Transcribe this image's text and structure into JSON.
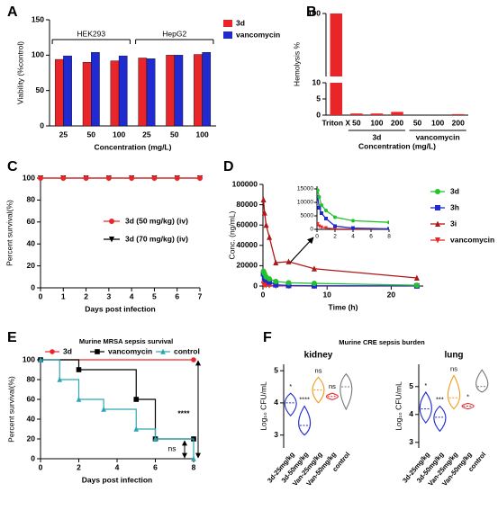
{
  "chart_data": [
    {
      "type": "bar",
      "panel_label": "A",
      "y_label": "Viability (%control)",
      "x_label": "Concentration (mg/L)",
      "categories": [
        "25",
        "50",
        "100",
        "25",
        "50",
        "100"
      ],
      "category_groups": [
        "HEK293",
        "HEK293",
        "HEK293",
        "HepG2",
        "HepG2",
        "HepG2"
      ],
      "series": [
        {
          "name": "3d",
          "color": "#e8262a",
          "values": [
            94,
            90,
            92,
            96,
            100,
            101
          ]
        },
        {
          "name": "vancomycin",
          "color": "#1f2bd1",
          "values": [
            99,
            104,
            99,
            95,
            100,
            104
          ]
        }
      ],
      "ylim": [
        0,
        150
      ],
      "yticks": [
        0,
        50,
        100,
        150
      ]
    },
    {
      "type": "bar",
      "panel_label": "B",
      "y_label": "Hemolysis %",
      "x_label": "Concentration (mg/L)",
      "categories": [
        "Triton X",
        "50",
        "100",
        "200",
        "50",
        "100",
        "200"
      ],
      "category_groups": [
        null,
        "3d",
        "3d",
        "3d",
        "vancomycin",
        "vancomycin",
        "vancomycin"
      ],
      "series": [
        {
          "color": "#e8262a",
          "values": [
            100,
            0.5,
            0.5,
            1,
            0,
            0,
            0.3
          ]
        }
      ],
      "ylim": [
        0,
        100
      ],
      "y_break": [
        10,
        15
      ],
      "yticks": [
        0,
        5,
        10,
        100
      ]
    },
    {
      "type": "line",
      "panel_label": "C",
      "y_label": "Percent survival(%)",
      "x_label": "Days post infection",
      "x": [
        0,
        1,
        2,
        3,
        4,
        5,
        6,
        7
      ],
      "series": [
        {
          "name": "3d (50 mg/kg) (iv)",
          "color": "#e8262a",
          "marker": "circle",
          "values": [
            100,
            100,
            100,
            100,
            100,
            100,
            100,
            100
          ]
        },
        {
          "name": "3d (70 mg/kg) (iv)",
          "color": "#000000",
          "marker": "triangle-down",
          "values": [
            100,
            100,
            100,
            100,
            100,
            100,
            100,
            100
          ]
        }
      ],
      "xlim": [
        0,
        7
      ],
      "xticks": [
        0,
        1,
        2,
        3,
        4,
        5,
        6,
        7
      ],
      "ylim": [
        0,
        100
      ],
      "yticks": [
        0,
        20,
        40,
        60,
        80,
        100
      ]
    },
    {
      "type": "line",
      "panel_label": "D",
      "y_label": "Conc. (ng/mL)",
      "x_label": "Time (h)",
      "x": [
        0.083,
        0.25,
        0.5,
        1,
        2,
        4,
        8,
        24
      ],
      "series": [
        {
          "name": "3d",
          "color": "#22c32a",
          "marker": "circle",
          "values": [
            14500,
            12000,
            9000,
            7000,
            4500,
            3200,
            2600,
            800
          ]
        },
        {
          "name": "3h",
          "color": "#1f2bd1",
          "marker": "square",
          "values": [
            12000,
            8000,
            6000,
            4000,
            1200,
            500,
            200,
            100
          ]
        },
        {
          "name": "3i",
          "color": "#b01717",
          "marker": "triangle",
          "values": [
            85000,
            72000,
            60000,
            48000,
            23000,
            24000,
            17000,
            8000
          ]
        },
        {
          "name": "vancomycin",
          "color": "#e8262a",
          "marker": "triangle-down",
          "values": [
            2000,
            1200,
            800,
            500,
            200,
            100,
            50,
            0
          ]
        }
      ],
      "xlim": [
        0,
        25
      ],
      "xticks": [
        0,
        10,
        20
      ],
      "ylim": [
        0,
        100000
      ],
      "yticks": [
        0,
        20000,
        40000,
        60000,
        80000,
        100000
      ],
      "inset": {
        "xlim": [
          0,
          8
        ],
        "xticks": [
          0,
          2,
          4,
          6,
          8
        ],
        "ylim": [
          0,
          16000
        ],
        "yticks": [
          0,
          5000,
          10000,
          15000
        ]
      }
    },
    {
      "type": "step",
      "panel_label": "E",
      "title": "Murine MRSA sepsis survival",
      "y_label": "Percent survival(%)",
      "x_label": "Days post infection",
      "series": [
        {
          "name": "3d",
          "color": "#e8262a",
          "marker": "circle",
          "x": [
            0,
            8
          ],
          "values": [
            100,
            100
          ]
        },
        {
          "name": "vancomycin",
          "color": "#000000",
          "marker": "square",
          "x": [
            0,
            2,
            5,
            6,
            8
          ],
          "values": [
            100,
            90,
            60,
            20,
            20
          ]
        },
        {
          "name": "control",
          "color": "#2aa6b5",
          "marker": "triangle",
          "x": [
            0,
            1,
            2,
            3.3,
            5,
            6,
            8
          ],
          "values": [
            100,
            80,
            60,
            50,
            30,
            20,
            0
          ]
        }
      ],
      "annotations": [
        "ns",
        "****"
      ],
      "xlim": [
        0,
        8
      ],
      "xticks": [
        0,
        2,
        4,
        6,
        8
      ],
      "ylim": [
        0,
        100
      ],
      "yticks": [
        0,
        20,
        40,
        60,
        80,
        100
      ]
    },
    {
      "type": "violin",
      "panel_label": "F",
      "title": "Murine CRE sepsis burden",
      "y_label": "Log₁₀ CFU/mL",
      "categories": [
        "3d-25mg/kg",
        "3d-50mg/kg",
        "Van-25mg/kg",
        "Van-50mg/kg",
        "control"
      ],
      "colors": [
        "#1f2bd1",
        "#1f2bd1",
        "#f39b1c",
        "#e8262a",
        "#777777"
      ],
      "panels": [
        {
          "title": "kidney",
          "min": [
            3.6,
            3.0,
            4.0,
            4.1,
            3.8
          ],
          "median": [
            4.0,
            3.3,
            4.4,
            4.2,
            4.5
          ],
          "max": [
            4.3,
            3.9,
            4.8,
            4.3,
            4.9
          ],
          "significance": [
            "*",
            "****",
            "ns",
            "ns",
            null
          ],
          "ylim": [
            2.6,
            5.2
          ],
          "yticks": [
            3,
            4,
            5
          ]
        },
        {
          "title": "lung",
          "min": [
            3.7,
            3.4,
            4.2,
            4.2,
            4.8
          ],
          "median": [
            4.2,
            3.9,
            4.6,
            4.3,
            5.0
          ],
          "max": [
            4.8,
            4.3,
            5.4,
            4.4,
            5.6
          ],
          "significance": [
            "*",
            "***",
            "ns",
            "*",
            null
          ],
          "ylim": [
            2.8,
            5.8
          ],
          "yticks": [
            3,
            4,
            5
          ]
        }
      ]
    }
  ]
}
